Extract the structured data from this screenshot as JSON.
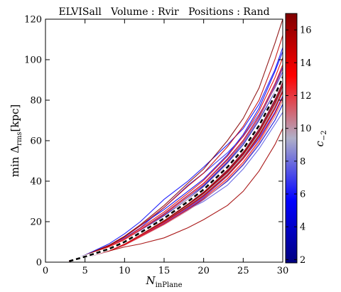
{
  "chart_data": {
    "type": "line",
    "title": "ELVISall   Volume : Rvir   Positions : Rand",
    "xlabel": {
      "main": "N",
      "sub": "inPlane"
    },
    "ylabel": {
      "main": "min Δ",
      "sub": "rms",
      "tail": "[kpc]"
    },
    "xlim": [
      0,
      30
    ],
    "ylim": [
      0,
      120
    ],
    "xticks": [
      0,
      5,
      10,
      15,
      20,
      25,
      30
    ],
    "yticks": [
      0,
      20,
      40,
      60,
      80,
      100,
      120
    ],
    "grid": false,
    "colorbar": {
      "label": "c_{-2}",
      "label_main": "c",
      "label_sub": "−2",
      "min": 1.8,
      "max": 17,
      "ticks": [
        2,
        4,
        6,
        8,
        10,
        12,
        14,
        16
      ],
      "colormap": [
        "#00007f",
        "#0000ff",
        "#b0b0c8",
        "#ff0000",
        "#7f0000"
      ]
    },
    "x": [
      3,
      5,
      8,
      10,
      12,
      15,
      18,
      20,
      23,
      25,
      27,
      29,
      30
    ],
    "series": [
      {
        "c": 2.5,
        "values": [
          0.5,
          2.5,
          6.0,
          9.5,
          14.0,
          20.5,
          28.0,
          34.0,
          45.0,
          54.0,
          66.0,
          80.0,
          88.0
        ]
      },
      {
        "c": 3.0,
        "values": [
          0.4,
          2.3,
          5.8,
          9.0,
          13.5,
          20.0,
          27.0,
          33.0,
          43.0,
          52.0,
          63.0,
          76.0,
          84.0
        ]
      },
      {
        "c": 3.5,
        "values": [
          0.5,
          2.6,
          6.5,
          10.0,
          15.5,
          23.0,
          31.0,
          37.5,
          49.0,
          58.0,
          70.0,
          84.0,
          92.0
        ]
      },
      {
        "c": 4.0,
        "values": [
          0.6,
          3.0,
          7.0,
          11.0,
          16.0,
          24.0,
          33.0,
          39.0,
          51.0,
          60.0,
          72.0,
          88.0,
          96.0
        ]
      },
      {
        "c": 4.5,
        "values": [
          0.5,
          2.4,
          5.5,
          8.5,
          13.0,
          19.0,
          26.0,
          31.0,
          40.0,
          48.0,
          58.0,
          70.0,
          78.0
        ]
      },
      {
        "c": 5.0,
        "values": [
          0.6,
          3.2,
          8.0,
          12.5,
          18.0,
          26.0,
          35.0,
          41.0,
          53.0,
          63.0,
          76.0,
          94.0,
          104.0
        ]
      },
      {
        "c": 5.2,
        "values": [
          0.5,
          2.7,
          6.2,
          9.8,
          14.5,
          21.5,
          29.0,
          35.0,
          46.0,
          55.0,
          67.0,
          82.0,
          90.0
        ]
      },
      {
        "c": 5.5,
        "values": [
          0.4,
          2.2,
          5.5,
          8.8,
          13.2,
          19.5,
          27.0,
          32.5,
          43.0,
          51.0,
          61.0,
          74.0,
          82.0
        ]
      },
      {
        "c": 5.8,
        "values": [
          0.7,
          3.5,
          9.0,
          14.0,
          20.0,
          31.0,
          40.0,
          47.0,
          58.0,
          66.0,
          78.0,
          95.0,
          106.0
        ]
      },
      {
        "c": 6.0,
        "values": [
          0.5,
          2.5,
          6.0,
          9.2,
          13.8,
          20.5,
          28.5,
          34.0,
          44.5,
          53.5,
          65.0,
          80.0,
          89.0
        ]
      },
      {
        "c": 6.2,
        "values": [
          0.6,
          2.9,
          7.0,
          10.8,
          15.8,
          23.5,
          32.0,
          38.0,
          49.5,
          59.0,
          71.0,
          87.0,
          96.0
        ]
      },
      {
        "c": 6.5,
        "values": [
          0.5,
          2.8,
          6.8,
          10.3,
          15.0,
          22.0,
          30.0,
          36.0,
          47.0,
          56.5,
          68.0,
          83.0,
          92.0
        ]
      },
      {
        "c": 6.8,
        "values": [
          0.6,
          3.1,
          8.2,
          12.0,
          17.0,
          27.0,
          38.0,
          44.0,
          54.0,
          62.0,
          73.0,
          86.0,
          94.0
        ]
      },
      {
        "c": 7.0,
        "values": [
          0.4,
          2.3,
          5.6,
          8.6,
          12.8,
          19.0,
          26.5,
          32.0,
          42.5,
          51.0,
          62.0,
          76.0,
          85.0
        ]
      },
      {
        "c": 7.3,
        "values": [
          0.5,
          2.6,
          6.4,
          9.7,
          14.2,
          21.0,
          29.0,
          35.0,
          45.5,
          54.5,
          66.0,
          81.0,
          90.0
        ]
      },
      {
        "c": 7.6,
        "values": [
          0.5,
          2.5,
          6.0,
          9.0,
          13.0,
          19.5,
          26.0,
          30.0,
          38.0,
          46.0,
          56.0,
          68.0,
          74.0
        ]
      },
      {
        "c": 8.0,
        "values": [
          0.6,
          3.0,
          7.2,
          11.2,
          16.2,
          24.0,
          33.0,
          39.0,
          50.5,
          60.0,
          72.0,
          88.0,
          97.0
        ]
      },
      {
        "c": 8.4,
        "values": [
          0.5,
          2.6,
          6.3,
          9.6,
          14.0,
          20.8,
          28.5,
          34.5,
          45.0,
          54.0,
          65.0,
          79.0,
          88.0
        ]
      },
      {
        "c": 8.8,
        "values": [
          0.4,
          2.4,
          5.9,
          9.0,
          13.3,
          19.8,
          27.5,
          33.0,
          43.0,
          51.5,
          62.5,
          76.5,
          85.0
        ]
      },
      {
        "c": 9.2,
        "values": [
          0.5,
          2.7,
          6.6,
          10.1,
          14.7,
          21.8,
          30.0,
          36.0,
          47.0,
          56.0,
          67.5,
          82.0,
          91.0
        ]
      },
      {
        "c": 9.6,
        "values": [
          0.5,
          2.6,
          6.1,
          9.3,
          13.6,
          20.3,
          28.0,
          33.5,
          44.0,
          52.5,
          63.5,
          77.5,
          86.0
        ]
      },
      {
        "c": 10.0,
        "values": [
          0.6,
          2.9,
          6.9,
          10.5,
          15.3,
          22.5,
          31.0,
          37.0,
          48.0,
          57.0,
          68.5,
          83.5,
          92.5
        ]
      },
      {
        "c": 10.4,
        "values": [
          0.5,
          2.5,
          6.0,
          9.1,
          13.4,
          19.9,
          27.6,
          33.2,
          43.5,
          52.0,
          63.0,
          77.0,
          85.5
        ]
      },
      {
        "c": 10.8,
        "values": [
          0.4,
          2.2,
          5.4,
          8.3,
          12.4,
          18.5,
          25.5,
          30.8,
          40.5,
          48.5,
          59.0,
          72.0,
          80.0
        ]
      },
      {
        "c": 11.2,
        "values": [
          0.6,
          3.0,
          7.1,
          10.9,
          15.9,
          23.4,
          32.2,
          38.3,
          49.8,
          59.3,
          71.0,
          86.5,
          95.5
        ]
      },
      {
        "c": 11.6,
        "values": [
          0.5,
          2.7,
          6.5,
          9.9,
          14.5,
          21.5,
          29.6,
          35.6,
          46.4,
          55.4,
          66.8,
          81.5,
          90.3
        ]
      },
      {
        "c": 12.0,
        "values": [
          0.5,
          2.8,
          6.7,
          10.2,
          14.9,
          22.0,
          30.3,
          36.3,
          47.3,
          56.4,
          68.0,
          83.0,
          92.0
        ]
      },
      {
        "c": 12.4,
        "values": [
          0.4,
          2.4,
          5.8,
          8.9,
          13.1,
          19.6,
          27.1,
          32.6,
          42.7,
          51.0,
          61.8,
          75.5,
          84.0
        ]
      },
      {
        "c": 12.8,
        "values": [
          0.6,
          3.1,
          7.3,
          11.1,
          16.1,
          23.8,
          32.8,
          39.0,
          50.6,
          60.2,
          72.2,
          88.0,
          97.5
        ]
      },
      {
        "c": 13.2,
        "values": [
          0.5,
          2.6,
          6.2,
          9.5,
          13.9,
          20.6,
          28.4,
          34.2,
          44.6,
          53.3,
          64.4,
          78.6,
          87.2
        ]
      },
      {
        "c": 13.6,
        "values": [
          0.4,
          2.3,
          5.6,
          8.6,
          12.7,
          18.9,
          26.1,
          31.5,
          41.3,
          49.4,
          59.9,
          73.3,
          81.4
        ]
      },
      {
        "c": 14.0,
        "values": [
          0.6,
          3.2,
          7.6,
          11.6,
          16.8,
          24.8,
          34.0,
          40.4,
          52.3,
          62.2,
          74.6,
          91.0,
          101.0
        ]
      },
      {
        "c": 14.5,
        "values": [
          0.5,
          2.7,
          6.4,
          9.8,
          14.3,
          21.2,
          29.2,
          35.1,
          45.8,
          54.7,
          66.1,
          80.6,
          89.4
        ]
      },
      {
        "c": 15.0,
        "values": [
          0.6,
          3.3,
          8.0,
          12.5,
          18.0,
          27.0,
          37.5,
          44.0,
          57.0,
          67.0,
          80.0,
          100.0,
          112.0
        ]
      },
      {
        "c": 15.5,
        "values": [
          0.5,
          2.5,
          6.0,
          9.0,
          13.5,
          20.0,
          27.5,
          33.0,
          43.0,
          51.5,
          62.5,
          76.0,
          84.5
        ]
      },
      {
        "c": 16.0,
        "values": [
          0.5,
          2.8,
          5.5,
          7.5,
          9.0,
          12.0,
          17.0,
          21.0,
          28.0,
          35.0,
          45.0,
          58.0,
          66.0
        ]
      },
      {
        "c": 16.3,
        "values": [
          0.5,
          2.6,
          6.3,
          9.6,
          14.0,
          20.9,
          28.8,
          34.6,
          45.2,
          54.0,
          65.3,
          79.7,
          88.5
        ]
      },
      {
        "c": 16.6,
        "values": [
          0.4,
          2.5,
          6.1,
          9.4,
          13.8,
          20.5,
          28.3,
          34.0,
          44.4,
          53.1,
          64.2,
          78.3,
          86.9
        ]
      },
      {
        "c": 16.8,
        "values": [
          0.7,
          3.4,
          8.3,
          12.8,
          18.5,
          28.0,
          39.0,
          46.0,
          60.0,
          71.0,
          86.0,
          108.0,
          120.0
        ]
      }
    ],
    "median": {
      "values": [
        0.5,
        2.7,
        6.5,
        10.0,
        14.6,
        21.7,
        29.9,
        35.9,
        46.9,
        55.9,
        67.4,
        82.3,
        91.3
      ]
    }
  }
}
